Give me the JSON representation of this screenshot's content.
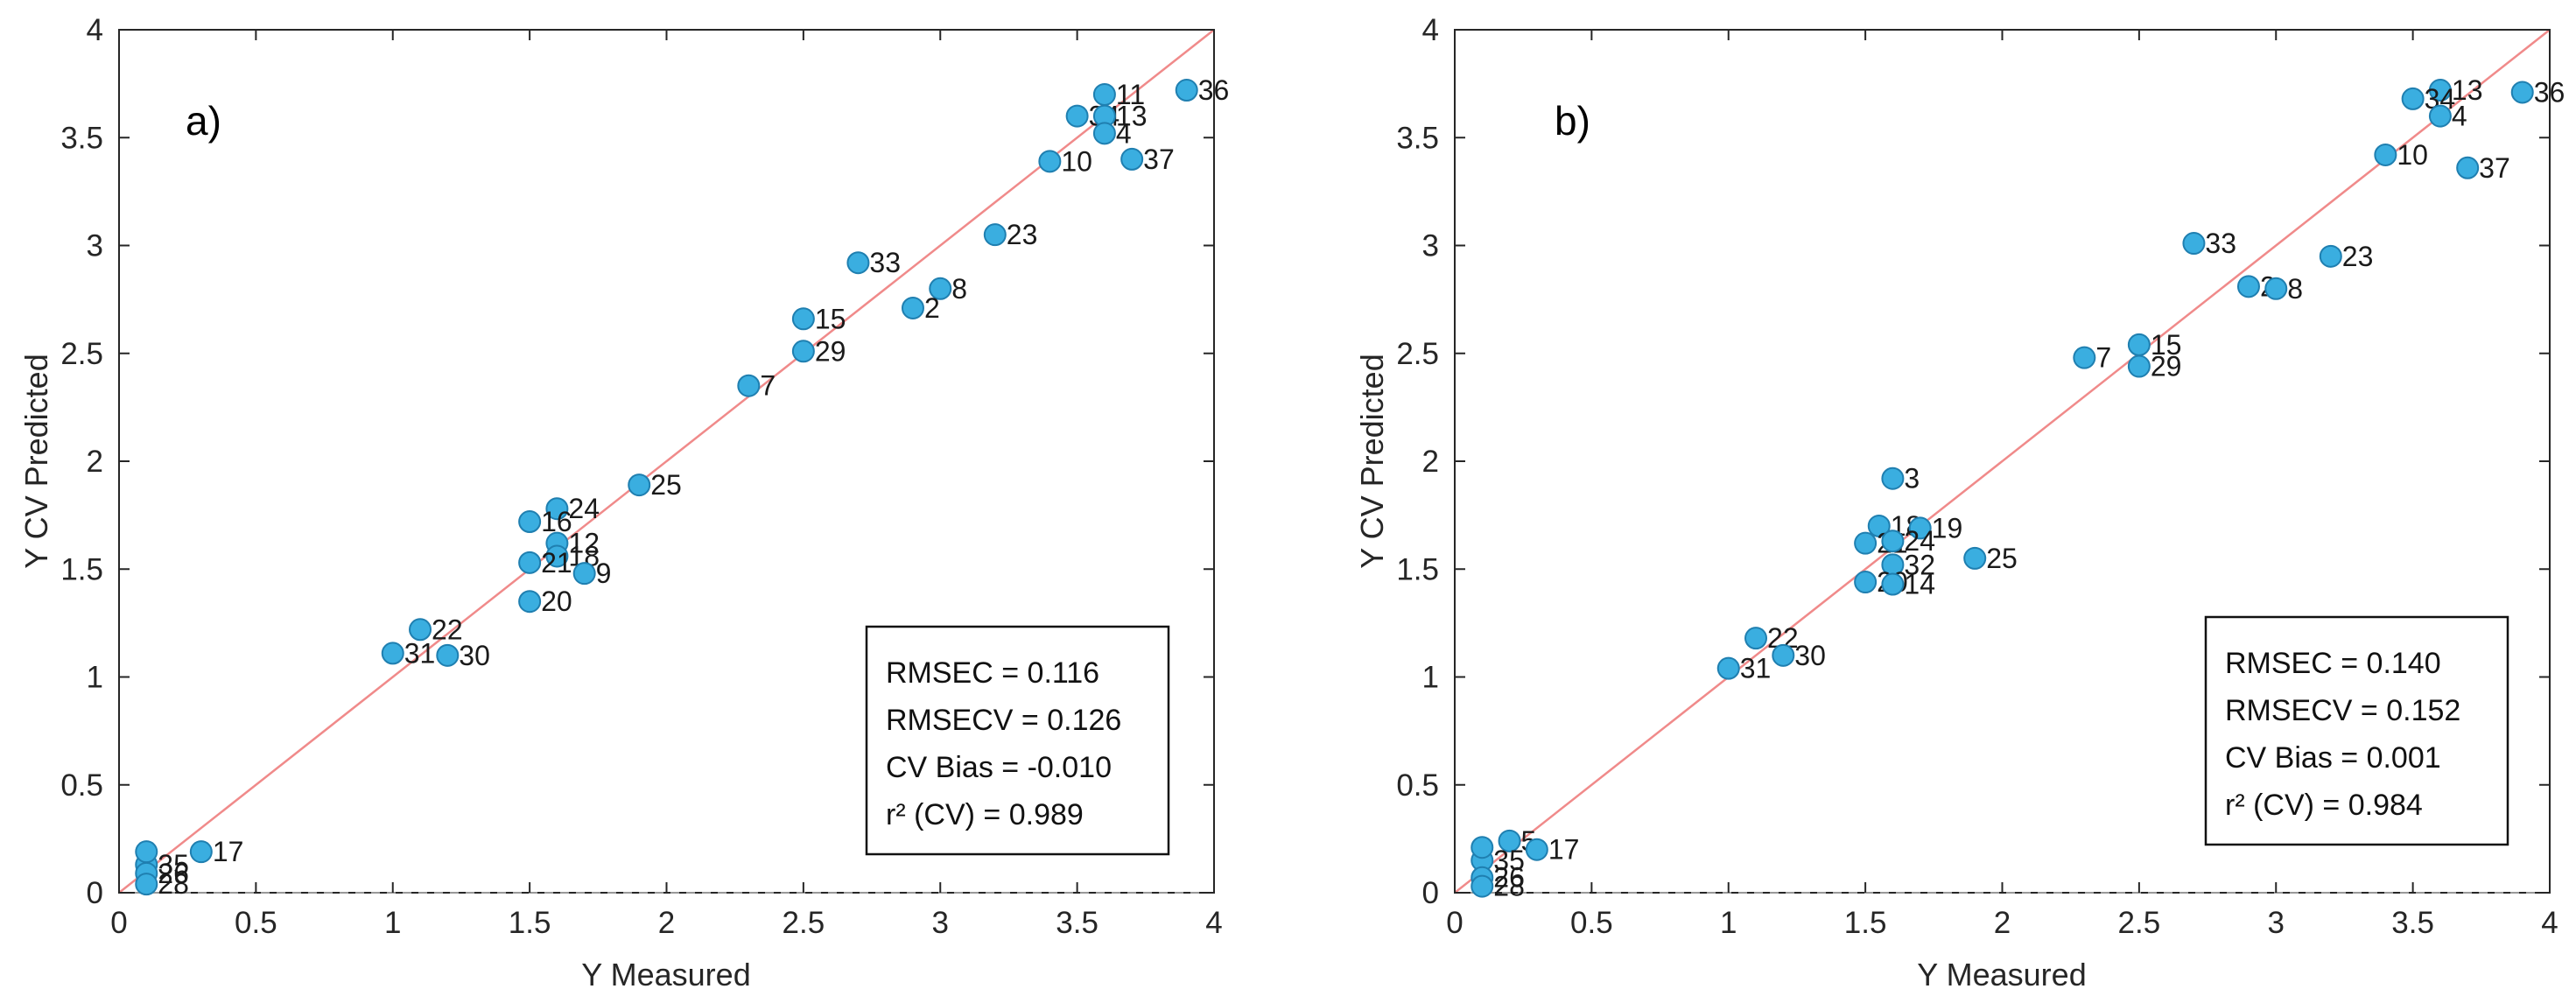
{
  "chart_data": [
    {
      "type": "scatter",
      "panel_label": "a)",
      "xlabel": "Y Measured",
      "ylabel": "Y CV Predicted",
      "xlim": [
        0,
        4
      ],
      "ylim": [
        0,
        4
      ],
      "xticks": [
        "0",
        "0.5",
        "1",
        "1.5",
        "2",
        "2.5",
        "3",
        "3.5",
        "4"
      ],
      "yticks": [
        "0",
        "0.5",
        "1",
        "1.5",
        "2",
        "2.5",
        "3",
        "3.5",
        "4"
      ],
      "stats": [
        "RMSEC = 0.116",
        "RMSECV = 0.126",
        "CV Bias = -0.010",
        "r² (CV) = 0.989"
      ],
      "points": [
        {
          "label": "11",
          "x": 3.6,
          "y": 3.7
        },
        {
          "label": "36",
          "x": 3.9,
          "y": 3.72
        },
        {
          "label": "34",
          "x": 3.5,
          "y": 3.6
        },
        {
          "label": "13",
          "x": 3.6,
          "y": 3.6
        },
        {
          "label": "4",
          "x": 3.6,
          "y": 3.52
        },
        {
          "label": "10",
          "x": 3.4,
          "y": 3.39
        },
        {
          "label": "37",
          "x": 3.7,
          "y": 3.4
        },
        {
          "label": "23",
          "x": 3.2,
          "y": 3.05
        },
        {
          "label": "33",
          "x": 2.7,
          "y": 2.92
        },
        {
          "label": "8",
          "x": 3.0,
          "y": 2.8
        },
        {
          "label": "2",
          "x": 2.9,
          "y": 2.71
        },
        {
          "label": "15",
          "x": 2.5,
          "y": 2.66
        },
        {
          "label": "29",
          "x": 2.5,
          "y": 2.51
        },
        {
          "label": "7",
          "x": 2.3,
          "y": 2.35
        },
        {
          "label": "25",
          "x": 1.9,
          "y": 1.89
        },
        {
          "label": "24",
          "x": 1.6,
          "y": 1.78
        },
        {
          "label": "16",
          "x": 1.5,
          "y": 1.72
        },
        {
          "label": "12",
          "x": 1.6,
          "y": 1.62
        },
        {
          "label": "18",
          "x": 1.6,
          "y": 1.56
        },
        {
          "label": "21",
          "x": 1.5,
          "y": 1.53
        },
        {
          "label": "9",
          "x": 1.7,
          "y": 1.48
        },
        {
          "label": "20",
          "x": 1.5,
          "y": 1.35
        },
        {
          "label": "22",
          "x": 1.1,
          "y": 1.22
        },
        {
          "label": "31",
          "x": 1.0,
          "y": 1.11
        },
        {
          "label": "30",
          "x": 1.2,
          "y": 1.1
        },
        {
          "label": "17",
          "x": 0.3,
          "y": 0.19
        },
        {
          "label": "35",
          "x": 0.1,
          "y": 0.13
        },
        {
          "label": "26",
          "x": 0.1,
          "y": 0.09
        },
        {
          "label": "28",
          "x": 0.1,
          "y": 0.04
        },
        {
          "label": "",
          "x": 0.1,
          "y": 0.19
        }
      ]
    },
    {
      "type": "scatter",
      "panel_label": "b)",
      "xlabel": "Y Measured",
      "ylabel": "Y CV Predicted",
      "xlim": [
        0,
        4
      ],
      "ylim": [
        0,
        4
      ],
      "xticks": [
        "0",
        "0.5",
        "1",
        "1.5",
        "2",
        "2.5",
        "3",
        "3.5",
        "4"
      ],
      "yticks": [
        "0",
        "0.5",
        "1",
        "1.5",
        "2",
        "2.5",
        "3",
        "3.5",
        "4"
      ],
      "stats": [
        "RMSEC = 0.140",
        "RMSECV = 0.152",
        "CV Bias = 0.001",
        "r² (CV) = 0.984"
      ],
      "points": [
        {
          "label": "13",
          "x": 3.6,
          "y": 3.72
        },
        {
          "label": "36",
          "x": 3.9,
          "y": 3.71
        },
        {
          "label": "34",
          "x": 3.5,
          "y": 3.68
        },
        {
          "label": "4",
          "x": 3.6,
          "y": 3.6
        },
        {
          "label": "10",
          "x": 3.4,
          "y": 3.42
        },
        {
          "label": "37",
          "x": 3.7,
          "y": 3.36
        },
        {
          "label": "33",
          "x": 2.7,
          "y": 3.01
        },
        {
          "label": "23",
          "x": 3.2,
          "y": 2.95
        },
        {
          "label": "2",
          "x": 2.9,
          "y": 2.81
        },
        {
          "label": "8",
          "x": 3.0,
          "y": 2.8
        },
        {
          "label": "15",
          "x": 2.5,
          "y": 2.54
        },
        {
          "label": "7",
          "x": 2.3,
          "y": 2.48
        },
        {
          "label": "29",
          "x": 2.5,
          "y": 2.44
        },
        {
          "label": "3",
          "x": 1.6,
          "y": 1.92
        },
        {
          "label": "18",
          "x": 1.55,
          "y": 1.7
        },
        {
          "label": "19",
          "x": 1.7,
          "y": 1.69
        },
        {
          "label": "21",
          "x": 1.5,
          "y": 1.62
        },
        {
          "label": "24",
          "x": 1.6,
          "y": 1.63
        },
        {
          "label": "25",
          "x": 1.9,
          "y": 1.55
        },
        {
          "label": "32",
          "x": 1.6,
          "y": 1.52
        },
        {
          "label": "20",
          "x": 1.5,
          "y": 1.44
        },
        {
          "label": "14",
          "x": 1.6,
          "y": 1.43
        },
        {
          "label": "22",
          "x": 1.1,
          "y": 1.18
        },
        {
          "label": "30",
          "x": 1.2,
          "y": 1.1
        },
        {
          "label": "31",
          "x": 1.0,
          "y": 1.04
        },
        {
          "label": "5",
          "x": 0.2,
          "y": 0.24
        },
        {
          "label": "17",
          "x": 0.3,
          "y": 0.2
        },
        {
          "label": "35",
          "x": 0.1,
          "y": 0.15
        },
        {
          "label": "26",
          "x": 0.1,
          "y": 0.07
        },
        {
          "label": "28",
          "x": 0.1,
          "y": 0.03
        },
        {
          "label": "",
          "x": 0.1,
          "y": 0.21
        }
      ]
    }
  ],
  "style": {
    "marker_fill": "#3aaee0",
    "marker_stroke": "#1f7fb0",
    "identity_line": "#f08a8a",
    "axis_color": "#262626",
    "background": "#ffffff"
  }
}
